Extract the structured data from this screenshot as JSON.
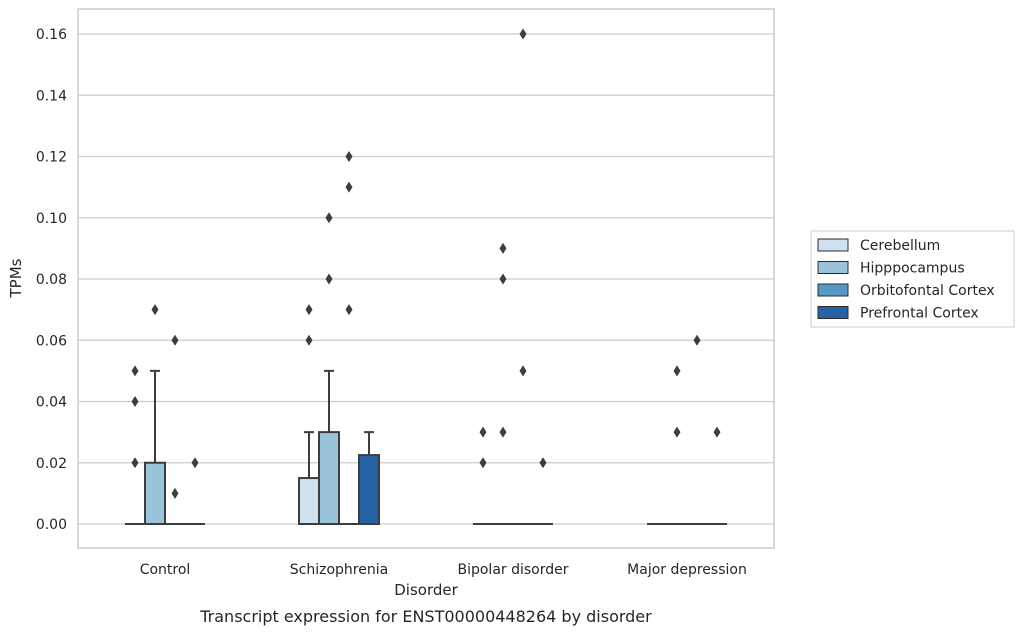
{
  "caption": "Transcript expression for ENST00000448264 by disorder",
  "chart_data": {
    "type": "box",
    "xlabel": "Disorder",
    "ylabel": "TPMs",
    "ylim": [
      -0.008,
      0.168
    ],
    "yticks": [
      "0.00",
      "0.02",
      "0.04",
      "0.06",
      "0.08",
      "0.10",
      "0.12",
      "0.14",
      "0.16"
    ],
    "categories": [
      "Control",
      "Schizophrenia",
      "Bipolar disorder",
      "Major depression"
    ],
    "grid": "horizontal",
    "legend_position": "right",
    "colors": {
      "Cerebellum": "#cfe1f1",
      "Hipppocampus": "#9ac4dc",
      "Orbitofontal Cortex": "#5498c8",
      "Prefrontal Cortex": "#2463a5"
    },
    "series": [
      {
        "name": "Cerebellum",
        "boxes": [
          {
            "q1": 0,
            "median": 0,
            "q3": 0,
            "whisker_low": 0,
            "whisker_high": 0,
            "outliers": [
              0.02,
              0.04,
              0.05
            ]
          },
          {
            "q1": 0,
            "median": 0,
            "q3": 0.015,
            "whisker_low": 0,
            "whisker_high": 0.03,
            "outliers": [
              0.06,
              0.07
            ]
          },
          {
            "q1": 0,
            "median": 0,
            "q3": 0,
            "whisker_low": 0,
            "whisker_high": 0,
            "outliers": [
              0.02,
              0.03
            ]
          },
          {
            "q1": 0,
            "median": 0,
            "q3": 0,
            "whisker_low": 0,
            "whisker_high": 0,
            "outliers": []
          }
        ]
      },
      {
        "name": "Hipppocampus",
        "boxes": [
          {
            "q1": 0,
            "median": 0,
            "q3": 0.02,
            "whisker_low": 0,
            "whisker_high": 0.05,
            "outliers": [
              0.07
            ]
          },
          {
            "q1": 0,
            "median": 0,
            "q3": 0.03,
            "whisker_low": 0,
            "whisker_high": 0.05,
            "outliers": [
              0.08,
              0.1
            ]
          },
          {
            "q1": 0,
            "median": 0,
            "q3": 0,
            "whisker_low": 0,
            "whisker_high": 0,
            "outliers": [
              0.03,
              0.08,
              0.09
            ]
          },
          {
            "q1": 0,
            "median": 0,
            "q3": 0,
            "whisker_low": 0,
            "whisker_high": 0,
            "outliers": [
              0.03,
              0.05
            ]
          }
        ]
      },
      {
        "name": "Orbitofontal Cortex",
        "boxes": [
          {
            "q1": 0,
            "median": 0,
            "q3": 0,
            "whisker_low": 0,
            "whisker_high": 0,
            "outliers": [
              0.01,
              0.06
            ]
          },
          {
            "q1": 0,
            "median": 0,
            "q3": 0,
            "whisker_low": 0,
            "whisker_high": 0,
            "outliers": [
              0.07,
              0.11,
              0.12
            ]
          },
          {
            "q1": 0,
            "median": 0,
            "q3": 0,
            "whisker_low": 0,
            "whisker_high": 0,
            "outliers": [
              0.05,
              0.16
            ]
          },
          {
            "q1": 0,
            "median": 0,
            "q3": 0,
            "whisker_low": 0,
            "whisker_high": 0,
            "outliers": [
              0.06
            ]
          }
        ]
      },
      {
        "name": "Prefrontal Cortex",
        "boxes": [
          {
            "q1": 0,
            "median": 0,
            "q3": 0,
            "whisker_low": 0,
            "whisker_high": 0,
            "outliers": [
              0.02
            ]
          },
          {
            "q1": 0,
            "median": 0,
            "q3": 0.0225,
            "whisker_low": 0,
            "whisker_high": 0.03,
            "outliers": []
          },
          {
            "q1": 0,
            "median": 0,
            "q3": 0,
            "whisker_low": 0,
            "whisker_high": 0,
            "outliers": [
              0.02
            ]
          },
          {
            "q1": 0,
            "median": 0,
            "q3": 0,
            "whisker_low": 0,
            "whisker_high": 0,
            "outliers": [
              0.03
            ]
          }
        ]
      }
    ]
  }
}
